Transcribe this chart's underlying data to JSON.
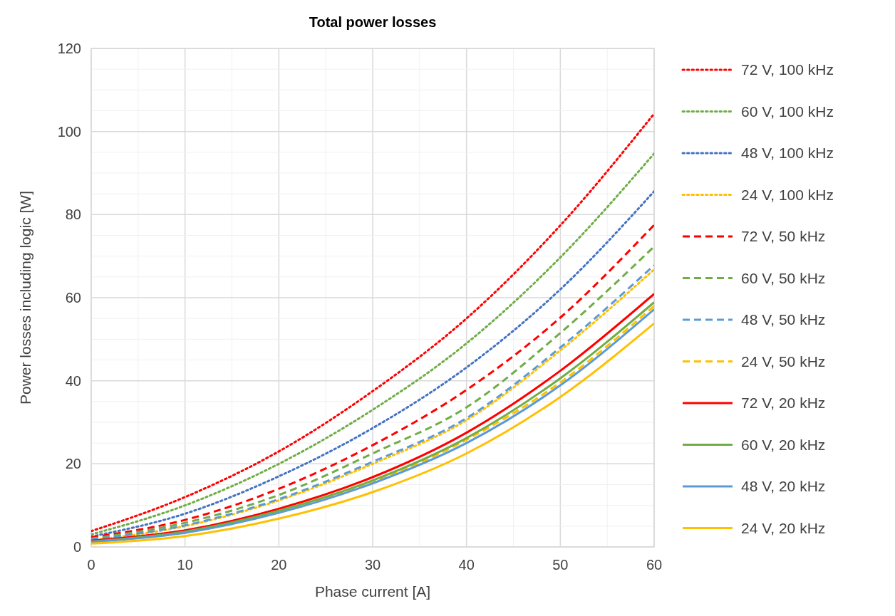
{
  "chart_data": {
    "type": "line",
    "title": "Total power losses",
    "xlabel": "Phase current [A]",
    "ylabel": "Power losses including logic [W]",
    "x": [
      0,
      10,
      20,
      30,
      40,
      50,
      60
    ],
    "xlim": [
      0,
      60
    ],
    "xticks": [
      0,
      {
        "value": 5,
        "label": null
      },
      10,
      {
        "value": 15,
        "label": null
      },
      20,
      {
        "value": 25,
        "label": null
      },
      30,
      {
        "value": 35,
        "label": null
      },
      40,
      {
        "value": 45,
        "label": null
      },
      50,
      {
        "value": 55,
        "label": null
      },
      60
    ],
    "ylim": [
      0,
      120
    ],
    "yticks": [
      0,
      {
        "value": 5,
        "label": null
      },
      {
        "value": 10,
        "label": null
      },
      {
        "value": 15,
        "label": null
      },
      20,
      {
        "value": 25,
        "label": null
      },
      {
        "value": 30,
        "label": null
      },
      {
        "value": 35,
        "label": null
      },
      40,
      {
        "value": 45,
        "label": null
      },
      {
        "value": 50,
        "label": null
      },
      {
        "value": 55,
        "label": null
      },
      60,
      {
        "value": 65,
        "label": null
      },
      {
        "value": 70,
        "label": null
      },
      {
        "value": 75,
        "label": null
      },
      80,
      {
        "value": 85,
        "label": null
      },
      {
        "value": 90,
        "label": null
      },
      {
        "value": 95,
        "label": null
      },
      100,
      {
        "value": 105,
        "label": null
      },
      {
        "value": 110,
        "label": null
      },
      {
        "value": 115,
        "label": null
      },
      120
    ],
    "grid": true,
    "legend": "right",
    "series": [
      {
        "name": "72 V, 100 kHz",
        "color": "#ff0000",
        "line_style": "dotted",
        "values": [
          3.8,
          12,
          23,
          37.5,
          55,
          77.4,
          104.3
        ]
      },
      {
        "name": "60 V, 100 kHz",
        "color": "#70ad47",
        "line_style": "dotted",
        "values": [
          3.0,
          10,
          20,
          33,
          49,
          69.7,
          94.7
        ]
      },
      {
        "name": "48 V, 100 kHz",
        "color": "#4472c4",
        "line_style": "dotted",
        "values": [
          2.5,
          8,
          17,
          28.6,
          43.2,
          62,
          85.6
        ]
      },
      {
        "name": "24 V, 100 kHz",
        "color": "#ffc000",
        "line_style": "dotted",
        "values": [
          1.6,
          5,
          11.2,
          20,
          30.5,
          47.3,
          66.8
        ]
      },
      {
        "name": "72 V, 50 kHz",
        "color": "#ff0000",
        "line_style": "dashed",
        "values": [
          2.3,
          6.5,
          14,
          24.5,
          37.8,
          55.2,
          77.5
        ]
      },
      {
        "name": "60 V, 50 kHz",
        "color": "#70ad47",
        "line_style": "dashed",
        "values": [
          2.0,
          5.8,
          12.5,
          22.5,
          33.6,
          51.5,
          72.3
        ]
      },
      {
        "name": "48 V, 50 kHz",
        "color": "#5b9bd5",
        "line_style": "dashed",
        "values": [
          1.8,
          5.2,
          11.5,
          20.5,
          31,
          48,
          67.8
        ]
      },
      {
        "name": "24 V, 50 kHz",
        "color": "#ffc000",
        "line_style": "dashed",
        "values": [
          1.2,
          3.6,
          8.5,
          15.5,
          25.8,
          39.6,
          58
        ]
      },
      {
        "name": "72 V, 20 kHz",
        "color": "#ff0000",
        "line_style": "solid",
        "values": [
          1.5,
          4,
          9.2,
          16.8,
          27.5,
          42.4,
          60.9
        ]
      },
      {
        "name": "60 V, 20 kHz",
        "color": "#70ad47",
        "line_style": "solid",
        "values": [
          1.3,
          3.7,
          8.7,
          16,
          26.2,
          40.6,
          58.9
        ]
      },
      {
        "name": "48 V, 20 kHz",
        "color": "#5b9bd5",
        "line_style": "solid",
        "values": [
          1.2,
          3.4,
          8.2,
          15.3,
          25,
          38.9,
          57.2
        ]
      },
      {
        "name": "24 V, 20 kHz",
        "color": "#ffc000",
        "line_style": "solid",
        "values": [
          0.8,
          2.6,
          6.8,
          13.2,
          22.5,
          36.1,
          53.8
        ]
      }
    ]
  }
}
